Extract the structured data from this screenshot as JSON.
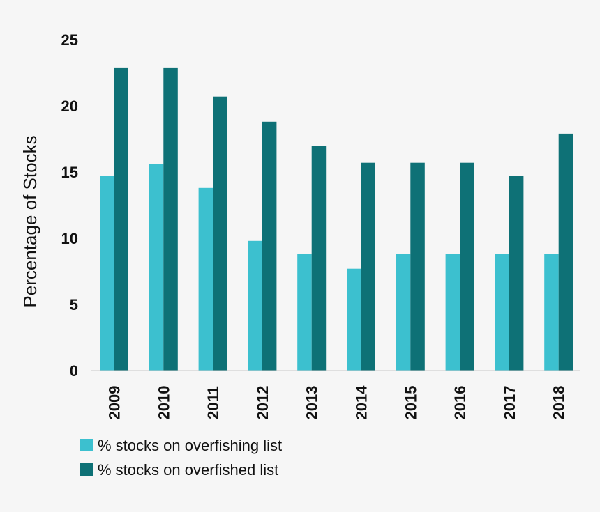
{
  "chart_data": {
    "type": "bar",
    "title": "",
    "xlabel": "",
    "ylabel": "Percentage of Stocks",
    "ylim": [
      0,
      25
    ],
    "yticks": [
      0,
      5,
      10,
      15,
      20,
      25
    ],
    "grid": false,
    "legend_position": "bottom-left",
    "categories": [
      "2009",
      "2010",
      "2011",
      "2012",
      "2013",
      "2014",
      "2015",
      "2016",
      "2017",
      "2018"
    ],
    "series": [
      {
        "name": "% stocks on overfishing list",
        "color": "#3cc0cf",
        "values": [
          14.7,
          15.6,
          13.8,
          9.8,
          8.8,
          7.7,
          8.8,
          8.8,
          8.8,
          8.8
        ]
      },
      {
        "name": "% stocks on overfished list",
        "color": "#0e7176",
        "values": [
          22.9,
          22.9,
          20.7,
          18.8,
          17.0,
          15.7,
          15.7,
          15.7,
          14.7,
          17.9
        ]
      }
    ]
  }
}
